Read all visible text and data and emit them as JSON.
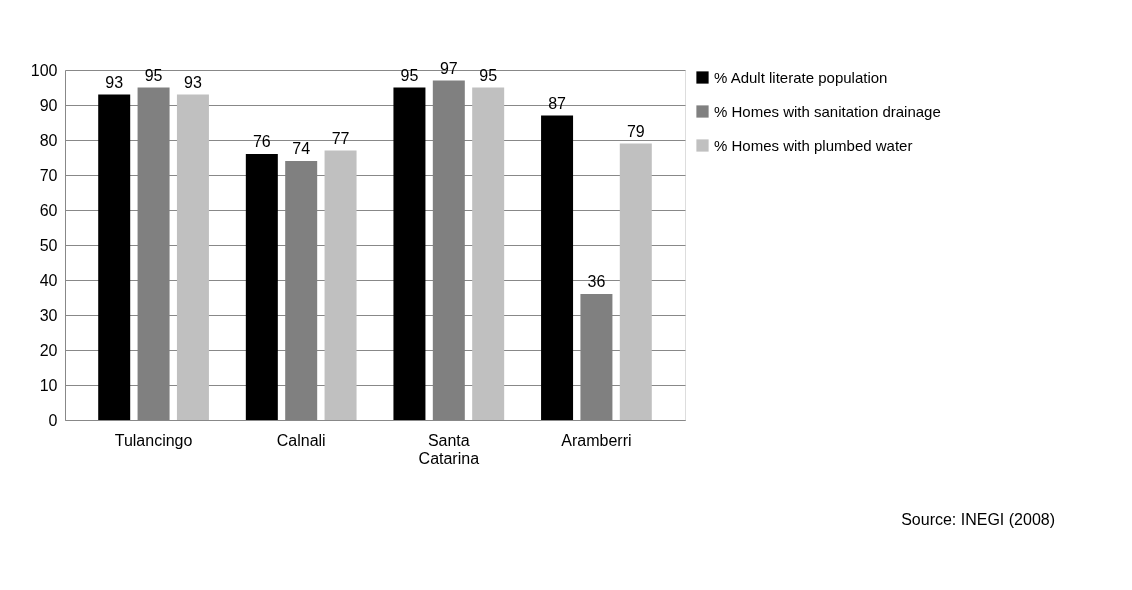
{
  "chart_data": {
    "type": "bar",
    "categories": [
      "Tulancingo",
      "Calnali",
      "Santa Catarina",
      "Aramberri"
    ],
    "series": [
      {
        "name": "% Adult literate population",
        "color": "#000000",
        "values": [
          93,
          76,
          95,
          87
        ]
      },
      {
        "name": "% Homes with sanitation drainage",
        "color": "#808080",
        "values": [
          95,
          74,
          97,
          36
        ]
      },
      {
        "name": "% Homes with plumbed water",
        "color": "#c0c0c0",
        "values": [
          93,
          77,
          95,
          79
        ]
      }
    ],
    "ylim": [
      0,
      100
    ],
    "yticks": [
      0,
      10,
      20,
      30,
      40,
      50,
      60,
      70,
      80,
      90,
      100
    ],
    "grid": "y",
    "legend": "right",
    "data_labels": true,
    "annotations": [
      "Source: INEGI (2008)"
    ]
  }
}
